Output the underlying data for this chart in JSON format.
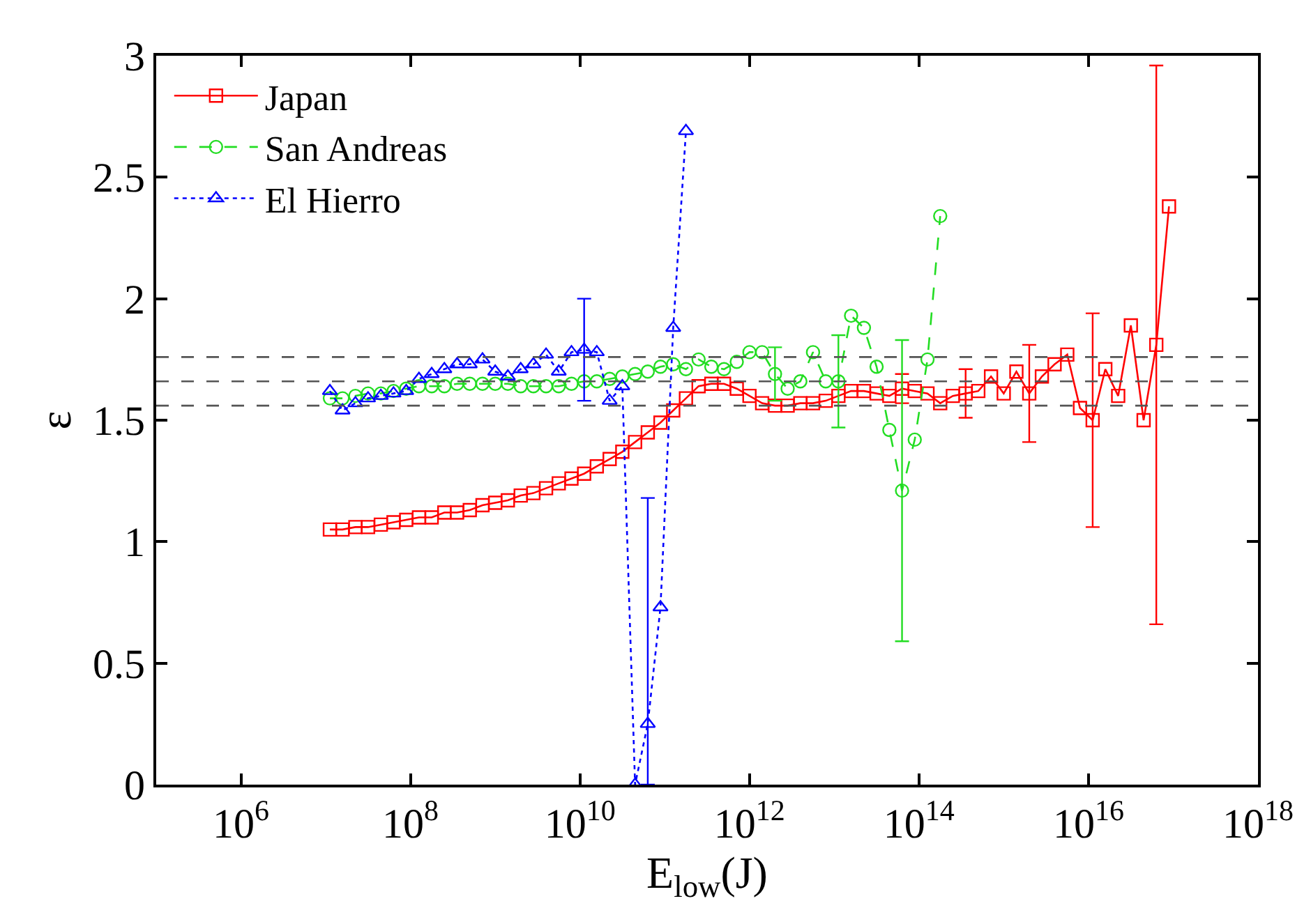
{
  "chart_data": {
    "type": "line",
    "xlabel": "E$_{low}$(J)",
    "ylabel": "ε",
    "log": "x",
    "xlim": [
      100000.0,
      1e+18
    ],
    "xticks": [
      {
        "value": 1000000.0,
        "label": "10$^{6}$"
      },
      {
        "value": 100000000.0,
        "label": "10$^{8}$"
      },
      {
        "value": 10000000000.0,
        "label": "10$^{10}$"
      },
      {
        "value": 1000000000000.0,
        "label": "10$^{12}$"
      },
      {
        "value": 100000000000000.0,
        "label": "10$^{14}$"
      },
      {
        "value": 1e+16,
        "label": "10$^{16}$"
      },
      {
        "value": 1e+18,
        "label": "10$^{18}$"
      }
    ],
    "ylim": [
      0,
      3
    ],
    "yticks": [
      0,
      0.5,
      1,
      1.5,
      2,
      2.5,
      3
    ],
    "grid": false,
    "legend": "top left",
    "x": [
      11200000.0,
      15800000.0,
      22400000.0,
      31600000.0,
      44700000.0,
      63100000.0,
      89100000.0,
      126000000.0,
      178000000.0,
      251000000.0,
      355000000.0,
      501000000.0,
      708000000.0,
      1000000000.0,
      1410000000.0,
      2000000000.0,
      2820000000.0,
      3980000000.0,
      5620000000.0,
      7940000000.0,
      11200000000.0,
      15800000000.0,
      22400000000.0,
      31600000000.0,
      44700000000.0,
      63100000000.0,
      89100000000.0,
      126000000000.0,
      178000000000.0,
      251000000000.0,
      355000000000.0,
      501000000000.0,
      708000000000.0,
      1000000000000.0,
      1410000000000.0,
      2000000000000.0,
      2820000000000.0,
      3980000000000.0,
      5620000000000.0,
      7940000000000.0,
      11200000000000.0,
      15800000000000.0,
      22400000000000.0,
      31600000000000.0,
      44700000000000.0,
      63100000000000.0,
      89100000000000.0,
      126000000000000.0,
      178000000000000.0,
      251000000000000.0,
      355000000000000.0,
      501000000000000.0,
      708000000000000.0,
      1000000000000000.0,
      1410000000000000.0,
      2000000000000000.0,
      2820000000000000.0,
      3980000000000000.0,
      5620000000000000.0,
      7940000000000000.0,
      1.12e+16,
      1.58e+16,
      2.24e+16,
      3.16e+16,
      4.47e+16,
      6.31e+16,
      8.91e+16
    ],
    "series": [
      {
        "name": "Japan",
        "color": "#ff0000",
        "marker": "square",
        "line_style": "solid",
        "values": [
          1.05,
          1.05,
          1.06,
          1.06,
          1.07,
          1.08,
          1.09,
          1.1,
          1.1,
          1.12,
          1.12,
          1.13,
          1.15,
          1.16,
          1.17,
          1.19,
          1.2,
          1.22,
          1.24,
          1.26,
          1.28,
          1.31,
          1.34,
          1.37,
          1.41,
          1.45,
          1.49,
          1.54,
          1.59,
          1.64,
          1.65,
          1.65,
          1.63,
          1.6,
          1.57,
          1.56,
          1.56,
          1.57,
          1.57,
          1.58,
          1.6,
          1.62,
          1.62,
          1.61,
          1.6,
          1.63,
          1.62,
          1.61,
          1.57,
          1.6,
          1.61,
          1.62,
          1.68,
          1.61,
          1.7,
          1.61,
          1.68,
          1.73,
          1.77,
          1.55,
          1.5,
          1.71,
          1.6,
          1.89,
          1.5,
          1.81,
          2.38
        ],
        "errors": [
          null,
          null,
          null,
          null,
          null,
          null,
          null,
          null,
          null,
          null,
          null,
          null,
          null,
          null,
          null,
          null,
          null,
          null,
          null,
          null,
          null,
          null,
          null,
          null,
          null,
          null,
          null,
          null,
          null,
          null,
          null,
          null,
          null,
          null,
          null,
          null,
          null,
          null,
          null,
          null,
          null,
          null,
          null,
          null,
          null,
          0.06,
          null,
          null,
          null,
          null,
          0.1,
          null,
          null,
          null,
          null,
          0.2,
          null,
          null,
          null,
          null,
          0.44,
          null,
          null,
          null,
          null,
          1.15,
          null
        ]
      },
      {
        "name": "San Andreas",
        "color": "#22dd22",
        "x": [
          11200000.0,
          15800000.0,
          22400000.0,
          31600000.0,
          44700000.0,
          63100000.0,
          89100000.0,
          126000000.0,
          178000000.0,
          251000000.0,
          355000000.0,
          501000000.0,
          708000000.0,
          1000000000.0,
          1410000000.0,
          2000000000.0,
          2820000000.0,
          3980000000.0,
          5620000000.0,
          7940000000.0,
          11200000000.0,
          15800000000.0,
          22400000000.0,
          31600000000.0,
          44700000000.0,
          63100000000.0,
          89100000000.0,
          126000000000.0,
          178000000000.0,
          251000000000.0,
          355000000000.0,
          501000000000.0,
          708000000000.0,
          1000000000000.0,
          1410000000000.0,
          2000000000000.0,
          2820000000000.0,
          3980000000000.0,
          5620000000000.0,
          7940000000000.0,
          11200000000000.0,
          15800000000000.0,
          22400000000000.0,
          31600000000000.0,
          44700000000000.0,
          63100000000000.0,
          89100000000000.0,
          126000000000000.0,
          178000000000000.0
        ],
        "marker": "circle",
        "line_style": "dashed",
        "values": [
          1.59,
          1.59,
          1.6,
          1.61,
          1.61,
          1.62,
          1.63,
          1.64,
          1.64,
          1.64,
          1.65,
          1.65,
          1.65,
          1.65,
          1.65,
          1.64,
          1.64,
          1.64,
          1.64,
          1.65,
          1.66,
          1.66,
          1.67,
          1.68,
          1.69,
          1.7,
          1.72,
          1.73,
          1.71,
          1.75,
          1.72,
          1.71,
          1.74,
          1.78,
          1.78,
          1.69,
          1.63,
          1.66,
          1.78,
          1.66,
          1.66,
          1.93,
          1.88,
          1.72,
          1.46,
          1.21,
          1.42,
          1.75,
          2.34
        ],
        "errors": [
          null,
          null,
          null,
          null,
          null,
          null,
          null,
          null,
          null,
          null,
          null,
          null,
          null,
          null,
          null,
          null,
          null,
          null,
          null,
          null,
          null,
          null,
          null,
          null,
          null,
          null,
          null,
          null,
          null,
          null,
          null,
          null,
          null,
          null,
          null,
          0.11,
          null,
          null,
          null,
          null,
          0.19,
          null,
          null,
          null,
          null,
          0.62,
          null,
          null,
          null
        ]
      },
      {
        "name": "El Hierro",
        "color": "#0000ff",
        "x": [
          11200000.0,
          15800000.0,
          22400000.0,
          31600000.0,
          44700000.0,
          63100000.0,
          89100000.0,
          126000000.0,
          178000000.0,
          251000000.0,
          355000000.0,
          501000000.0,
          708000000.0,
          1000000000.0,
          1410000000.0,
          2000000000.0,
          2820000000.0,
          3980000000.0,
          5620000000.0,
          7940000000.0,
          11200000000.0,
          15800000000.0,
          22400000000.0,
          31600000000.0,
          44700000000.0,
          63100000000.0,
          89100000000.0,
          126000000000.0,
          178000000000.0
        ],
        "marker": "triangle",
        "line_style": "dotted",
        "values": [
          1.62,
          1.54,
          1.57,
          1.59,
          1.6,
          1.61,
          1.62,
          1.67,
          1.69,
          1.71,
          1.73,
          1.73,
          1.75,
          1.7,
          1.68,
          1.71,
          1.73,
          1.77,
          1.7,
          1.78,
          1.79,
          1.78,
          1.58,
          1.64,
          0.0,
          0.25,
          0.73,
          1.88,
          2.69
        ],
        "errors": [
          null,
          null,
          null,
          null,
          null,
          null,
          null,
          null,
          null,
          null,
          null,
          null,
          null,
          null,
          null,
          null,
          null,
          null,
          null,
          null,
          0.21,
          null,
          null,
          null,
          null,
          [
            0,
            1.18
          ],
          null,
          null,
          null
        ]
      }
    ],
    "ref_lines": [
      {
        "axis": "y",
        "value": 1.76,
        "color": "#555555",
        "line_style": "dashed"
      },
      {
        "axis": "y",
        "value": 1.66,
        "color": "#555555",
        "line_style": "dashed"
      },
      {
        "axis": "y",
        "value": 1.56,
        "color": "#555555",
        "line_style": "dashed"
      }
    ]
  }
}
